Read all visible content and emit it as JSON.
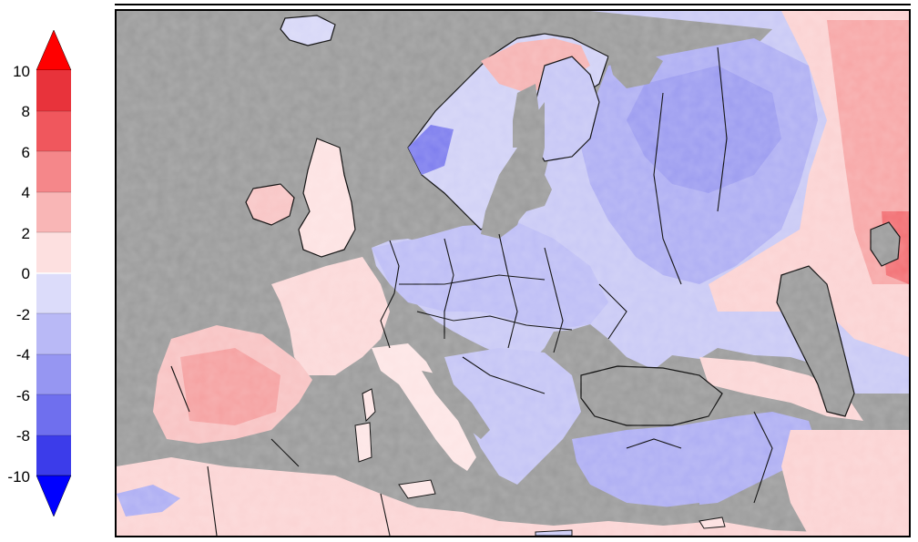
{
  "colorbar": {
    "tick_labels": [
      "10",
      "8",
      "6",
      "4",
      "2",
      "0",
      "-2",
      "-4",
      "-6",
      "-8",
      "-10"
    ],
    "colors": {
      "plus_over": "#ff0000",
      "plus_8_10": "#e8333b",
      "plus_6_8": "#f0575d",
      "plus_4_6": "#f5878a",
      "plus_2_4": "#f9b6b6",
      "plus_0_2": "#fde0e0",
      "minus_0_2": "#dcdcfa",
      "minus_2_4": "#b9b9f6",
      "minus_4_6": "#9696f2",
      "minus_6_8": "#6f6fee",
      "minus_8_10": "#3c3cea",
      "minus_over": "#0000ff"
    }
  },
  "map": {
    "ocean_color": "#9a9a9a",
    "border_color": "#000000"
  }
}
